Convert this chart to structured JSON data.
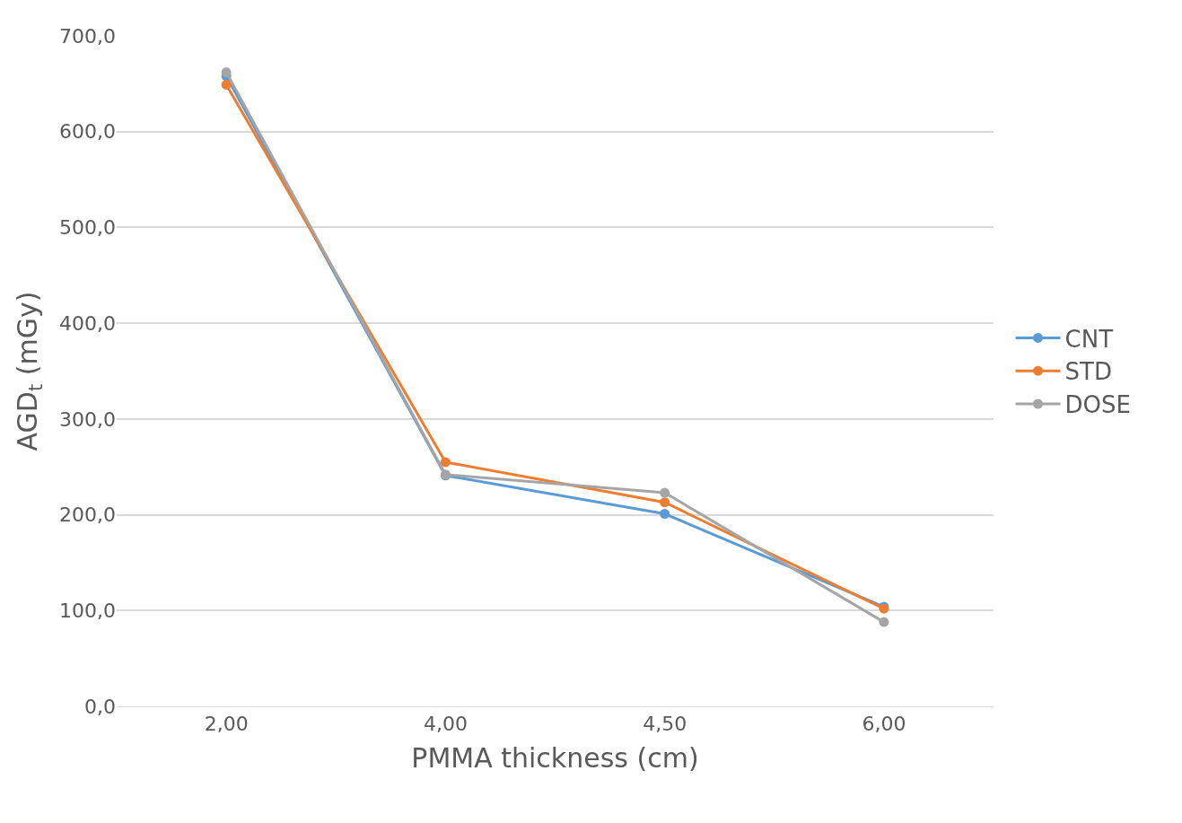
{
  "chart_data": {
    "type": "line",
    "xlabel": "PMMA thickness (cm)",
    "ylabel": "AGD$_{t}$ (mGy)",
    "categories": [
      "2,00",
      "4,00",
      "4,50",
      "6,00"
    ],
    "series": [
      {
        "name": "CNT",
        "color": "#5b9bd5",
        "values": [
          658,
          241,
          201,
          104
        ]
      },
      {
        "name": "STD",
        "color": "#ed7d31",
        "values": [
          649,
          255,
          213,
          102
        ]
      },
      {
        "name": "DOSE",
        "color": "#a5a5a5",
        "values": [
          662,
          242,
          223,
          88
        ]
      }
    ],
    "ylim": [
      0,
      700
    ],
    "yticks": [
      {
        "value": 0,
        "label": "0,0"
      },
      {
        "value": 100,
        "label": "100,0"
      },
      {
        "value": 200,
        "label": "200,0"
      },
      {
        "value": 300,
        "label": "300,0"
      },
      {
        "value": 400,
        "label": "400,0"
      },
      {
        "value": 500,
        "label": "500,0"
      },
      {
        "value": 600,
        "label": "600,0"
      },
      {
        "value": 700,
        "label": "700,0"
      }
    ],
    "grid": "y",
    "legend": "right",
    "marker": "circle",
    "line_style": "solid"
  }
}
